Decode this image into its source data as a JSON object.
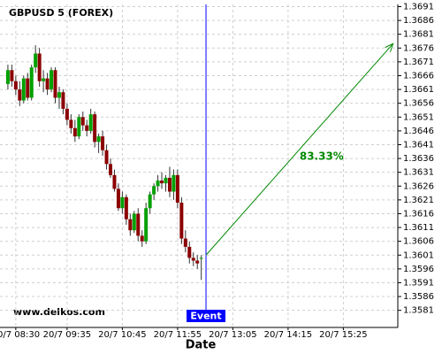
{
  "chart_data": {
    "type": "candlestick",
    "title": "GBPUSD 5 (FOREX)",
    "x_label": "Date",
    "watermark": "www.delkos.com",
    "x": [
      "20/7 08:20",
      "20/7 08:25",
      "20/7 08:30",
      "20/7 08:35",
      "20/7 08:40",
      "20/7 08:45",
      "20/7 08:50",
      "20/7 08:55",
      "20/7 09:00",
      "20/7 09:05",
      "20/7 09:10",
      "20/7 09:15",
      "20/7 09:20",
      "20/7 09:25",
      "20/7 09:30",
      "20/7 09:35",
      "20/7 09:40",
      "20/7 09:45",
      "20/7 09:50",
      "20/7 09:55",
      "20/7 10:00",
      "20/7 10:05",
      "20/7 10:10",
      "20/7 10:15",
      "20/7 10:20",
      "20/7 10:25",
      "20/7 10:30",
      "20/7 10:35",
      "20/7 10:40",
      "20/7 10:45",
      "20/7 10:50",
      "20/7 10:55",
      "20/7 11:00",
      "20/7 11:05",
      "20/7 11:10",
      "20/7 11:15",
      "20/7 11:20",
      "20/7 11:25",
      "20/7 11:30",
      "20/7 11:35",
      "20/7 11:40",
      "20/7 11:45",
      "20/7 11:50",
      "20/7 11:55",
      "20/7 12:00",
      "20/7 12:05",
      "20/7 12:10",
      "20/7 12:15",
      "20/7 12:20",
      "20/7 12:25"
    ],
    "open": [
      1.3663,
      1.3668,
      1.3664,
      1.3661,
      1.3657,
      1.3665,
      1.3658,
      1.3669,
      1.3674,
      1.3664,
      1.3665,
      1.3661,
      1.3668,
      1.3658,
      1.366,
      1.3654,
      1.365,
      1.3647,
      1.3644,
      1.3651,
      1.3648,
      1.3646,
      1.3652,
      1.3642,
      1.3644,
      1.3639,
      1.3634,
      1.363,
      1.3625,
      1.3618,
      1.3622,
      1.3614,
      1.361,
      1.3616,
      1.3608,
      1.3606,
      1.3618,
      1.3623,
      1.3626,
      1.3628,
      1.3627,
      1.3629,
      1.3624,
      1.363,
      1.362,
      1.3607,
      1.3604,
      1.36,
      1.3599,
      1.36
    ],
    "high": [
      1.367,
      1.367,
      1.3666,
      1.3664,
      1.3666,
      1.3667,
      1.367,
      1.3677,
      1.3676,
      1.3668,
      1.3667,
      1.3669,
      1.3669,
      1.3662,
      1.3661,
      1.3656,
      1.3652,
      1.365,
      1.3652,
      1.3653,
      1.365,
      1.3654,
      1.3653,
      1.3645,
      1.3646,
      1.3641,
      1.3636,
      1.3632,
      1.3627,
      1.3624,
      1.3623,
      1.3616,
      1.3617,
      1.3618,
      1.361,
      1.362,
      1.3624,
      1.3627,
      1.363,
      1.3631,
      1.363,
      1.3633,
      1.3632,
      1.3632,
      1.3622,
      1.361,
      1.3606,
      1.3602,
      1.3601,
      1.3601
    ],
    "low": [
      1.3661,
      1.3662,
      1.3659,
      1.3655,
      1.3656,
      1.3657,
      1.3657,
      1.3667,
      1.3662,
      1.366,
      1.3659,
      1.366,
      1.3656,
      1.3654,
      1.3652,
      1.3648,
      1.3645,
      1.3642,
      1.3643,
      1.3646,
      1.3644,
      1.3645,
      1.364,
      1.3638,
      1.3637,
      1.3632,
      1.3629,
      1.3624,
      1.3617,
      1.3616,
      1.3612,
      1.3608,
      1.3609,
      1.3606,
      1.3604,
      1.3605,
      1.3616,
      1.3621,
      1.3624,
      1.3625,
      1.3624,
      1.3622,
      1.3621,
      1.3618,
      1.3605,
      1.3602,
      1.3598,
      1.3597,
      1.3596,
      1.3592
    ],
    "close": [
      1.3668,
      1.3664,
      1.3661,
      1.3657,
      1.3665,
      1.3658,
      1.3669,
      1.3674,
      1.3664,
      1.3665,
      1.3661,
      1.3668,
      1.3658,
      1.366,
      1.3654,
      1.365,
      1.3647,
      1.3644,
      1.3651,
      1.3648,
      1.3646,
      1.3652,
      1.3642,
      1.3644,
      1.3639,
      1.3634,
      1.363,
      1.3625,
      1.3618,
      1.3622,
      1.3614,
      1.361,
      1.3616,
      1.3608,
      1.3606,
      1.3618,
      1.3623,
      1.3626,
      1.3628,
      1.3627,
      1.3629,
      1.3624,
      1.363,
      1.362,
      1.3607,
      1.3604,
      1.36,
      1.3599,
      1.3598,
      1.36
    ],
    "up_color": "#00a000",
    "down_color": "#8b0000",
    "xlim": [
      "20/7 08:10",
      "20/7 16:34"
    ],
    "xticks": [
      "20/7 08:30",
      "20/7 09:35",
      "20/7 10:45",
      "20/7 11:55",
      "20/7 13:05",
      "20/7 14:15",
      "20/7 15:25"
    ],
    "ylim": [
      1.35748,
      1.36918
    ],
    "yticks": [
      1.3691,
      1.3686,
      1.3681,
      1.3676,
      1.3671,
      1.3666,
      1.3661,
      1.3656,
      1.3651,
      1.3646,
      1.3641,
      1.3636,
      1.3631,
      1.3626,
      1.3621,
      1.3616,
      1.3611,
      1.3606,
      1.3601,
      1.3596,
      1.3591,
      1.3586,
      1.3581
    ],
    "grid": true,
    "event": {
      "x": "20/7 12:31",
      "label": "Event",
      "color": "#0000ff"
    },
    "projection": {
      "start": {
        "x": "20/7 12:31",
        "y": 1.3601
      },
      "end": {
        "x": "20/7 16:28",
        "y": 1.36776
      },
      "label": "83.33%",
      "color": "#008800"
    }
  }
}
